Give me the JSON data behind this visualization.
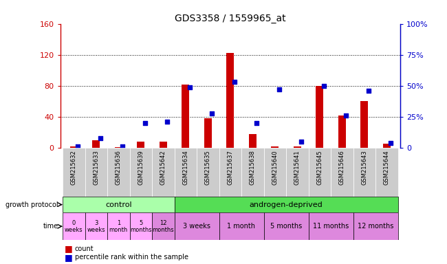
{
  "title": "GDS3358 / 1559965_at",
  "samples": [
    "GSM215632",
    "GSM215633",
    "GSM215636",
    "GSM215639",
    "GSM215642",
    "GSM215634",
    "GSM215635",
    "GSM215637",
    "GSM215638",
    "GSM215640",
    "GSM215641",
    "GSM215645",
    "GSM215646",
    "GSM215643",
    "GSM215644"
  ],
  "count_values": [
    2,
    10,
    1,
    8,
    8,
    82,
    38,
    122,
    18,
    2,
    2,
    80,
    42,
    60,
    5
  ],
  "percentile_values": [
    1,
    8,
    1,
    20,
    21,
    49,
    28,
    53,
    20,
    47,
    5,
    50,
    26,
    46,
    4
  ],
  "bar_color": "#cc0000",
  "dot_color": "#0000cc",
  "ylim_left": [
    0,
    160
  ],
  "ylim_right": [
    0,
    100
  ],
  "yticks_left": [
    0,
    40,
    80,
    120,
    160
  ],
  "yticks_right": [
    0,
    25,
    50,
    75,
    100
  ],
  "ytick_labels_left": [
    "0",
    "40",
    "80",
    "120",
    "160"
  ],
  "ytick_labels_right": [
    "0",
    "25%",
    "50%",
    "75%",
    "100%"
  ],
  "left_axis_color": "#cc0000",
  "right_axis_color": "#0000cc",
  "control_color": "#aaffaa",
  "androgen_color": "#55dd55",
  "control_count": 5,
  "time_colors_control": [
    "#ffaaff",
    "#ffaaff",
    "#ffaaff",
    "#ffaaff",
    "#dd88dd"
  ],
  "time_colors_androgen": [
    "#dd88dd",
    "#dd88dd",
    "#dd88dd",
    "#dd88dd",
    "#dd88dd"
  ],
  "time_labels_control": [
    "0\nweeks",
    "3\nweeks",
    "1\nmonth",
    "5\nmonths",
    "12\nmonths"
  ],
  "time_labels_androgen": [
    "3 weeks",
    "1 month",
    "5 months",
    "11 months",
    "12 months"
  ],
  "androgen_time_spans": [
    2,
    2,
    2,
    2,
    2
  ],
  "bg_color": "#ffffff",
  "bar_width": 0.35,
  "dot_size": 25,
  "xticklabel_bg": "#cccccc"
}
